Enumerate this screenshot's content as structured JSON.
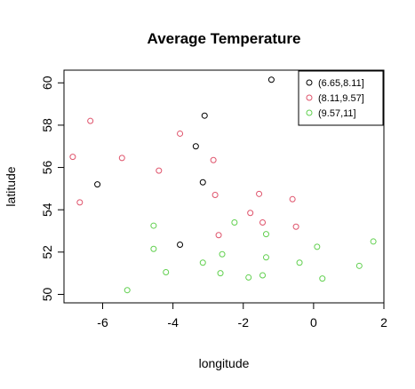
{
  "chart_data": {
    "type": "scatter",
    "title": "Average Temperature",
    "xlabel": "longitude",
    "ylabel": "latitude",
    "xlim": [
      -7.1,
      2.0
    ],
    "ylim": [
      49.6,
      60.6
    ],
    "xticks": [
      -6,
      -4,
      -2,
      0,
      2
    ],
    "xtick_labels": [
      "-6",
      "-4",
      "-2",
      "0",
      "2"
    ],
    "yticks": [
      50,
      52,
      54,
      56,
      58,
      60
    ],
    "ytick_labels": [
      "50",
      "52",
      "54",
      "56",
      "58",
      "60"
    ],
    "grid": false,
    "legend_position": "top-right",
    "series": [
      {
        "name": "(6.65,8.11]",
        "color": "#000000",
        "points": [
          [
            -1.2,
            60.15
          ],
          [
            -3.1,
            58.45
          ],
          [
            -3.35,
            57.0
          ],
          [
            -6.15,
            55.2
          ],
          [
            -3.15,
            55.3
          ],
          [
            -3.8,
            52.35
          ]
        ]
      },
      {
        "name": "(8.11,9.57]",
        "color": "#DF536B",
        "points": [
          [
            -6.35,
            58.2
          ],
          [
            -6.85,
            56.5
          ],
          [
            -5.45,
            56.45
          ],
          [
            -6.65,
            54.35
          ],
          [
            -3.8,
            57.6
          ],
          [
            -4.4,
            55.85
          ],
          [
            -2.85,
            56.35
          ],
          [
            -2.8,
            54.7
          ],
          [
            -1.55,
            54.75
          ],
          [
            -0.6,
            54.5
          ],
          [
            -1.8,
            53.85
          ],
          [
            -1.45,
            53.4
          ],
          [
            -0.5,
            53.2
          ],
          [
            -2.7,
            52.8
          ]
        ]
      },
      {
        "name": "(9.57,11]",
        "color": "#61D04F",
        "points": [
          [
            -5.3,
            50.2
          ],
          [
            -4.55,
            53.25
          ],
          [
            -4.55,
            52.15
          ],
          [
            -4.2,
            51.05
          ],
          [
            -3.15,
            51.5
          ],
          [
            -2.25,
            53.4
          ],
          [
            -2.6,
            51.9
          ],
          [
            -2.65,
            51.0
          ],
          [
            -1.35,
            52.85
          ],
          [
            -1.35,
            51.75
          ],
          [
            -1.85,
            50.8
          ],
          [
            -1.45,
            50.9
          ],
          [
            -0.4,
            51.5
          ],
          [
            0.1,
            52.25
          ],
          [
            0.25,
            50.75
          ],
          [
            1.3,
            51.35
          ],
          [
            1.7,
            52.5
          ]
        ]
      }
    ]
  }
}
